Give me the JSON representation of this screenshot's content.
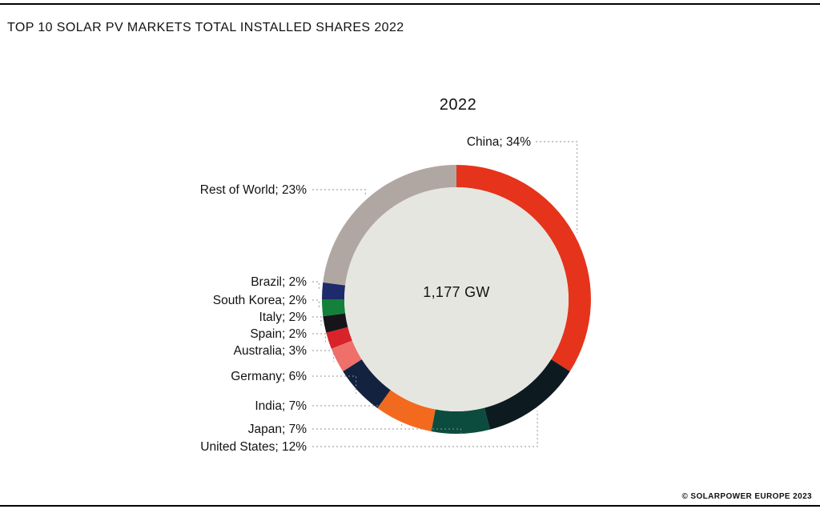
{
  "page": {
    "title": "TOP 10 SOLAR PV MARKETS TOTAL INSTALLED SHARES 2022",
    "footer": "© SOLARPOWER EUROPE 2023"
  },
  "chart_data": {
    "type": "pie",
    "variant": "donut",
    "title": "2022",
    "center_label": "1,177 GW",
    "units": "%",
    "label_format": "{label}; {value}%",
    "inner_disc_color": "#e6e6e0",
    "legend_position": "left-labels-with-dotted-leaders",
    "segments": [
      {
        "label": "China",
        "value": 34,
        "color": "#e5341b"
      },
      {
        "label": "United States",
        "value": 12,
        "color": "#0d1b21"
      },
      {
        "label": "Japan",
        "value": 7,
        "color": "#0b4c3e"
      },
      {
        "label": "India",
        "value": 7,
        "color": "#f3691d"
      },
      {
        "label": "Germany",
        "value": 6,
        "color": "#13233f"
      },
      {
        "label": "Australia",
        "value": 3,
        "color": "#ef6f6b"
      },
      {
        "label": "Spain",
        "value": 2,
        "color": "#d8232b"
      },
      {
        "label": "Italy",
        "value": 2,
        "color": "#15151a"
      },
      {
        "label": "South Korea",
        "value": 2,
        "color": "#15803a"
      },
      {
        "label": "Brazil",
        "value": 2,
        "color": "#1d2a6b"
      },
      {
        "label": "Rest of World",
        "value": 23,
        "color": "#b1a7a2"
      }
    ]
  }
}
